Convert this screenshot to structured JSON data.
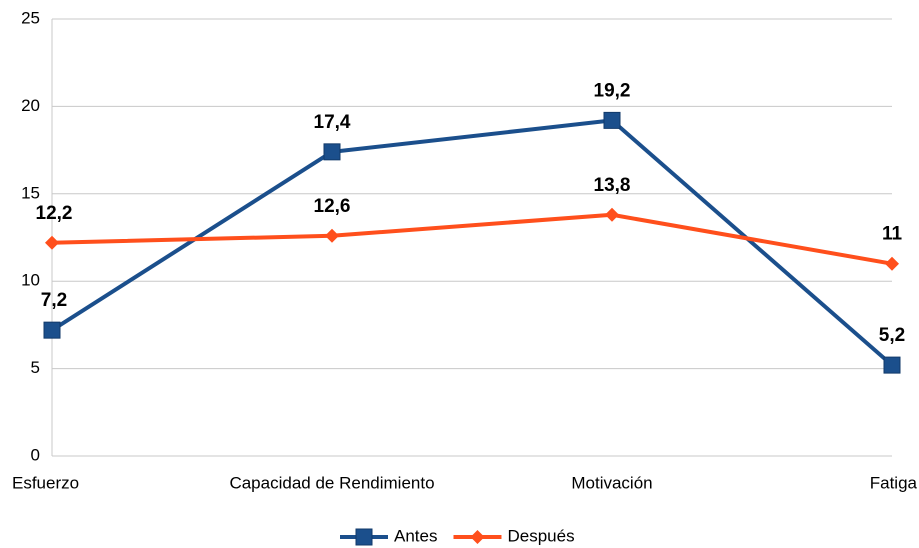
{
  "chart_data": {
    "type": "line",
    "categories": [
      "Esfuerzo",
      "Capacidad de Rendimiento",
      "Motivación",
      "Fatiga"
    ],
    "series": [
      {
        "name": "Antes",
        "color": "#1b4f8c",
        "marker": "square",
        "values": [
          7.2,
          17.4,
          19.2,
          5.2
        ],
        "value_labels": [
          "7,2",
          "17,4",
          "19,2",
          "5,2"
        ]
      },
      {
        "name": "Después",
        "color": "#ff4f1c",
        "marker": "diamond",
        "values": [
          12.2,
          12.6,
          13.8,
          11
        ],
        "value_labels": [
          "12,2",
          "12,6",
          "13,8",
          "11"
        ]
      }
    ],
    "ylim": [
      0,
      25
    ],
    "yticks": [
      0,
      5,
      10,
      15,
      20,
      25
    ],
    "grid": true,
    "legend": "bottom"
  }
}
